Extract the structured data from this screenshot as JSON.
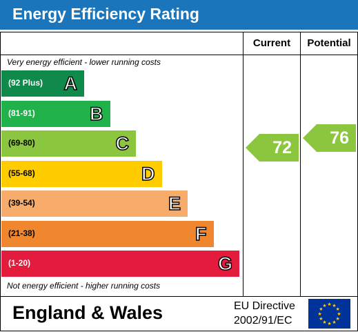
{
  "title": "Energy Efficiency Rating",
  "columns": {
    "current": "Current",
    "potential": "Potential"
  },
  "notes": {
    "top": "Very energy efficient - lower running costs",
    "bottom": "Not energy efficient - higher running costs"
  },
  "footer": {
    "region": "England & Wales",
    "directive_line1": "EU Directive",
    "directive_line2": "2002/91/EC"
  },
  "colors": {
    "header": "#1a75bb"
  },
  "chart_data": {
    "type": "bar",
    "title": "Energy Efficiency Rating",
    "categories": [
      "A",
      "B",
      "C",
      "D",
      "E",
      "F",
      "G"
    ],
    "bands": [
      {
        "letter": "A",
        "range": "(92 Plus)",
        "color": "#0f8a4a",
        "text_color": "#ffffff"
      },
      {
        "letter": "B",
        "range": "(81-91)",
        "color": "#21b14b",
        "text_color": "#ffffff"
      },
      {
        "letter": "C",
        "range": "(69-80)",
        "color": "#8cc63f",
        "text_color": "#000000"
      },
      {
        "letter": "D",
        "range": "(55-68)",
        "color": "#ffcc00",
        "text_color": "#000000"
      },
      {
        "letter": "E",
        "range": "(39-54)",
        "color": "#f7ac6b",
        "text_color": "#000000"
      },
      {
        "letter": "F",
        "range": "(21-38)",
        "color": "#f0862d",
        "text_color": "#000000"
      },
      {
        "letter": "G",
        "range": "(1-20)",
        "color": "#e31c3d",
        "text_color": "#ffffff"
      }
    ],
    "ratings": [
      {
        "label": "Current",
        "value": 72,
        "band": "C",
        "color": "#8cc63f"
      },
      {
        "label": "Potential",
        "value": 76,
        "band": "C",
        "color": "#8cc63f"
      }
    ]
  }
}
